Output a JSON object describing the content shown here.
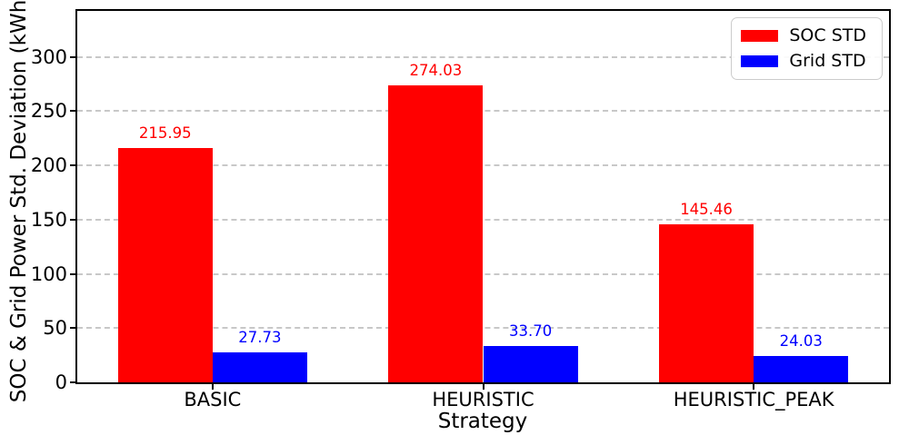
{
  "chart_data": {
    "type": "bar",
    "categories": [
      "BASIC",
      "HEURISTIC",
      "HEURISTIC_PEAK"
    ],
    "series": [
      {
        "name": "SOC STD",
        "color": "#ff0000",
        "values": [
          215.95,
          274.03,
          145.46
        ]
      },
      {
        "name": "Grid STD",
        "color": "#0000ff",
        "values": [
          27.73,
          33.7,
          24.03
        ]
      }
    ],
    "title": "",
    "xlabel": "Strategy",
    "ylabel": "SOC & Grid Power Std. Deviation (kWh)",
    "ylim": [
      0,
      342.5
    ],
    "yticks": [
      0,
      50,
      100,
      150,
      200,
      250,
      300
    ],
    "bar_width_fraction": 0.35,
    "grid": "dashed horizontal",
    "grid_color": "#c8c8c8",
    "legend_position": "upper right",
    "value_label_decimals": 2
  }
}
